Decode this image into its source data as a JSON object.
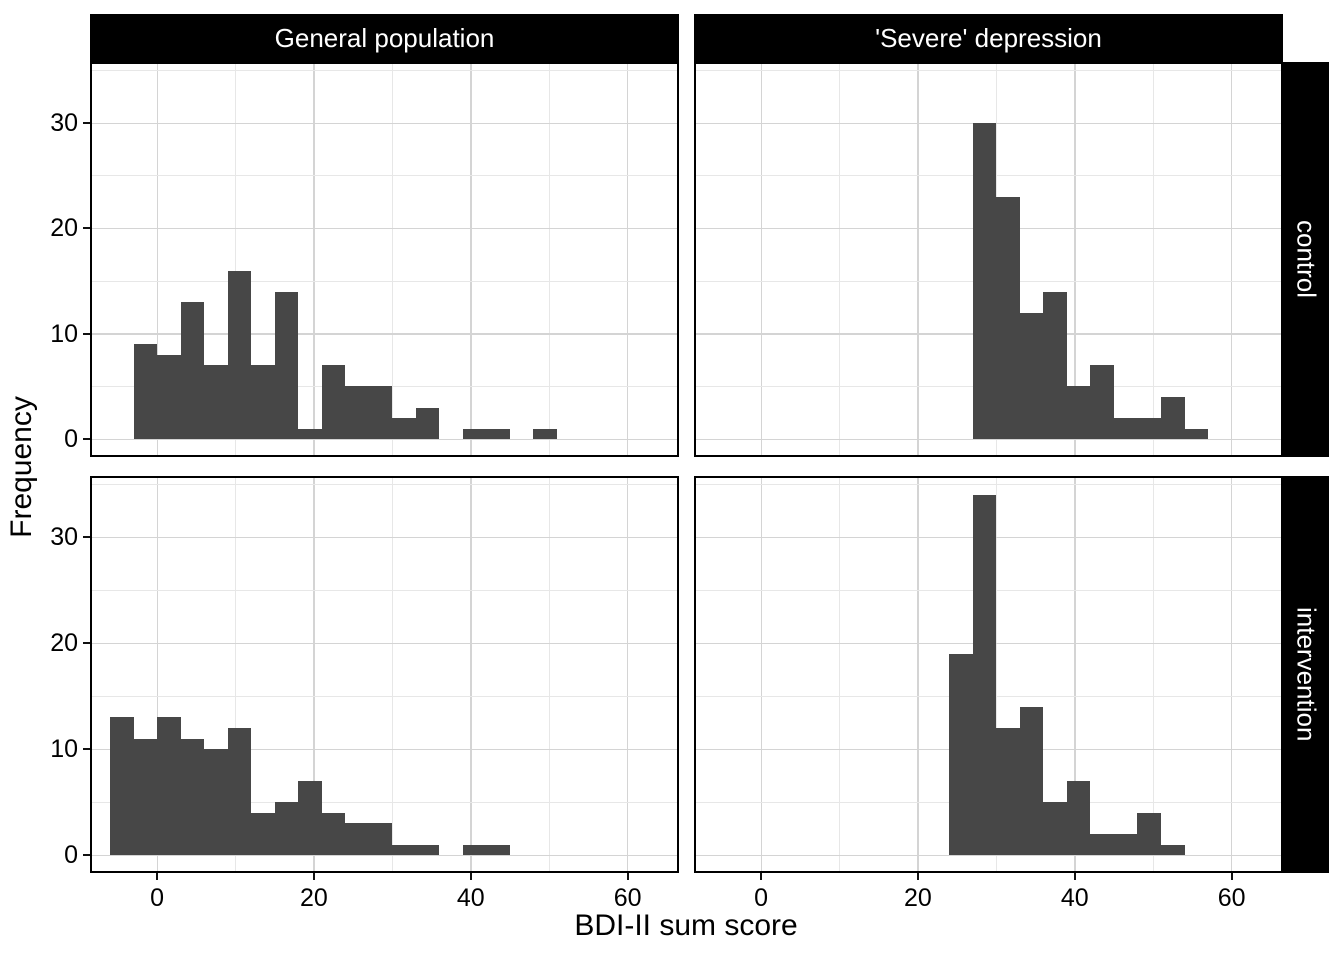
{
  "figure": {
    "x_axis_title": "BDI-II sum score",
    "y_axis_title": "Frequency",
    "x_tick_labels": [
      "0",
      "20",
      "40",
      "60"
    ],
    "y_tick_labels": [
      "0",
      "10",
      "20",
      "30"
    ],
    "column_strips": [
      "General population",
      "'Severe' depression"
    ],
    "row_strips": [
      "control",
      "intervention"
    ]
  },
  "colors": {
    "bar_fill": "#474747",
    "strip_background": "#000000",
    "strip_text": "#ffffff",
    "panel_border": "#000000",
    "grid_major": "#d4d4d4",
    "grid_minor": "#e7e7e7",
    "axis_text": "#000000",
    "background": "#ffffff"
  },
  "chart_data": {
    "type": "histogram",
    "title": "",
    "xlabel": "BDI-II sum score",
    "ylabel": "Frequency",
    "binwidth": 3,
    "x_ticks": [
      0,
      20,
      40,
      60
    ],
    "y_ticks": [
      0,
      10,
      20,
      30
    ],
    "x_minor_gridlines": [
      10,
      30,
      50
    ],
    "y_minor_gridlines": [
      5,
      15,
      25,
      35
    ],
    "xlim": [
      -8.3,
      66.3
    ],
    "ylim": [
      -1.5,
      35.6
    ],
    "grid": "on",
    "legend": "none",
    "facet_columns": [
      "General population",
      "'Severe' depression"
    ],
    "facet_rows": [
      "control",
      "intervention"
    ],
    "panels": [
      {
        "row": "control",
        "column": "General population",
        "bin_start": -3,
        "bin_width": 3,
        "counts": [
          9,
          8,
          13,
          7,
          16,
          7,
          14,
          1,
          7,
          5,
          5,
          2,
          3,
          0,
          1,
          1,
          0,
          1
        ],
        "n": 100
      },
      {
        "row": "control",
        "column": "'Severe' depression",
        "bin_start": 27,
        "bin_width": 3,
        "counts": [
          30,
          23,
          12,
          14,
          5,
          7,
          2,
          2,
          4,
          1
        ],
        "n": 100
      },
      {
        "row": "intervention",
        "column": "General population",
        "bin_start": -6,
        "bin_width": 3,
        "counts": [
          13,
          11,
          13,
          11,
          10,
          12,
          4,
          5,
          7,
          4,
          3,
          3,
          1,
          1,
          0,
          1,
          1
        ],
        "n": 100
      },
      {
        "row": "intervention",
        "column": "'Severe' depression",
        "bin_start": 24,
        "bin_width": 3,
        "counts": [
          19,
          34,
          12,
          14,
          5,
          7,
          2,
          2,
          4,
          1
        ],
        "n": 100
      }
    ]
  }
}
